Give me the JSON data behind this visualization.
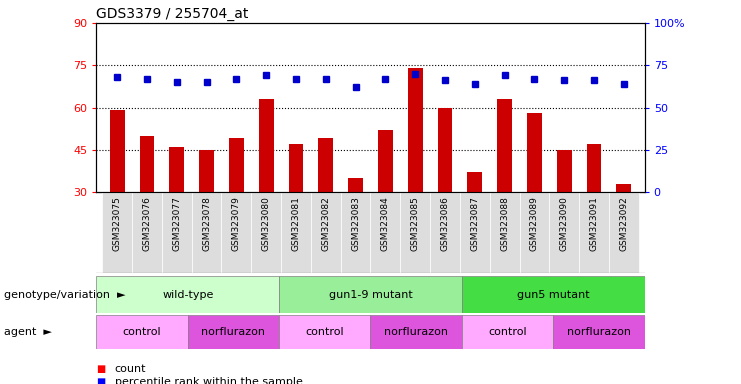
{
  "title": "GDS3379 / 255704_at",
  "samples": [
    "GSM323075",
    "GSM323076",
    "GSM323077",
    "GSM323078",
    "GSM323079",
    "GSM323080",
    "GSM323081",
    "GSM323082",
    "GSM323083",
    "GSM323084",
    "GSM323085",
    "GSM323086",
    "GSM323087",
    "GSM323088",
    "GSM323089",
    "GSM323090",
    "GSM323091",
    "GSM323092"
  ],
  "bar_values": [
    59,
    50,
    46,
    45,
    49,
    63,
    47,
    49,
    35,
    52,
    74,
    60,
    37,
    63,
    58,
    45,
    47,
    33
  ],
  "dot_values": [
    68,
    67,
    65,
    65,
    67,
    69,
    67,
    67,
    62,
    67,
    70,
    66,
    64,
    69,
    67,
    66,
    66,
    64
  ],
  "bar_color": "#cc0000",
  "dot_color": "#0000cc",
  "ylim_left": [
    30,
    90
  ],
  "ylim_right": [
    0,
    100
  ],
  "yticks_left": [
    30,
    45,
    60,
    75,
    90
  ],
  "yticks_right": [
    0,
    25,
    50,
    75,
    100
  ],
  "ytick_labels_right": [
    "0",
    "25",
    "50",
    "75",
    "100%"
  ],
  "ytick_labels_left": [
    "30",
    "45",
    "60",
    "75",
    "90"
  ],
  "hlines": [
    45,
    60,
    75
  ],
  "genotype_groups": [
    {
      "label": "wild-type",
      "start": 0,
      "end": 6,
      "color": "#ccffcc"
    },
    {
      "label": "gun1-9 mutant",
      "start": 6,
      "end": 12,
      "color": "#99ee99"
    },
    {
      "label": "gun5 mutant",
      "start": 12,
      "end": 18,
      "color": "#44dd44"
    }
  ],
  "agent_groups": [
    {
      "label": "control",
      "start": 0,
      "end": 3,
      "color": "#ffaaff"
    },
    {
      "label": "norflurazon",
      "start": 3,
      "end": 6,
      "color": "#dd55dd"
    },
    {
      "label": "control",
      "start": 6,
      "end": 9,
      "color": "#ffaaff"
    },
    {
      "label": "norflurazon",
      "start": 9,
      "end": 12,
      "color": "#dd55dd"
    },
    {
      "label": "control",
      "start": 12,
      "end": 15,
      "color": "#ffaaff"
    },
    {
      "label": "norflurazon",
      "start": 15,
      "end": 18,
      "color": "#dd55dd"
    }
  ],
  "genotype_label": "genotype/variation",
  "agent_label": "agent",
  "background_color": "#ffffff",
  "plot_bg_color": "#ffffff",
  "xtick_bg": "#dddddd"
}
